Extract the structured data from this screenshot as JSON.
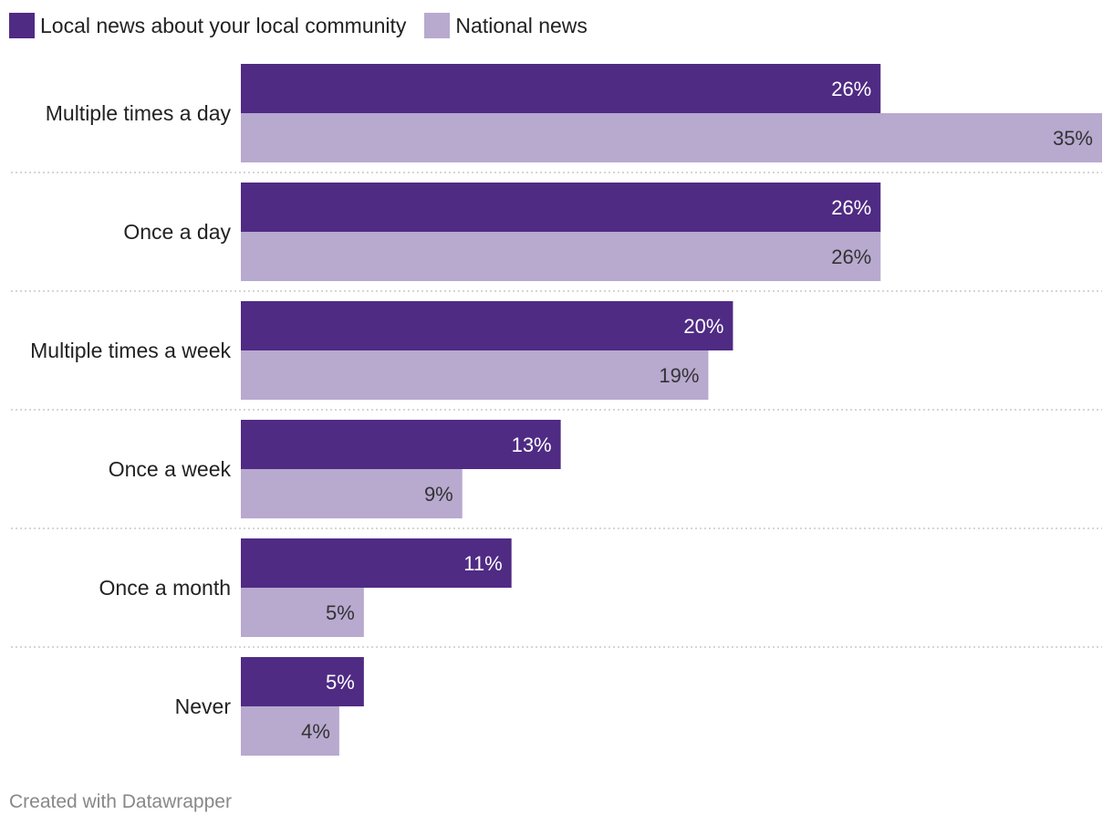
{
  "chart_data": {
    "type": "bar",
    "orientation": "horizontal",
    "categories": [
      "Multiple times a day",
      "Once a day",
      "Multiple times a week",
      "Once a week",
      "Once a month",
      "Never"
    ],
    "series": [
      {
        "name": "Local news about your local community",
        "values": [
          26,
          26,
          20,
          13,
          11,
          5
        ],
        "labels": [
          "26%",
          "26%",
          "20%",
          "13%",
          "11%",
          "5%"
        ],
        "color": "#4f2b84",
        "label_color": "#ffffff"
      },
      {
        "name": "National news",
        "values": [
          35,
          26,
          19,
          9,
          5,
          4
        ],
        "labels": [
          "35%",
          "26%",
          "19%",
          "9%",
          "5%",
          "4%"
        ],
        "color": "#b8a9cf",
        "label_color": "#333333"
      }
    ],
    "xlim": [
      0,
      35
    ],
    "title": "",
    "xlabel": "",
    "ylabel": "",
    "grid": false,
    "legend_position": "top-left"
  },
  "footer": "Created with Datawrapper"
}
